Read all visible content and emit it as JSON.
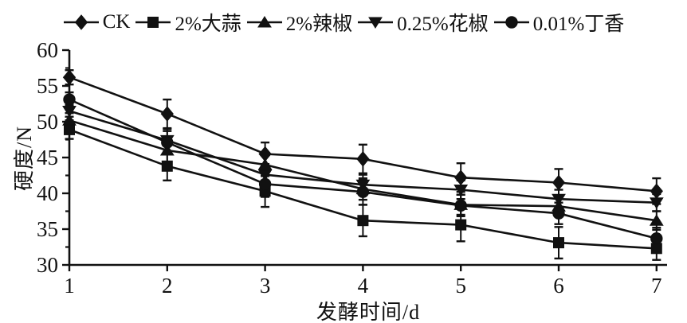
{
  "figure": {
    "background": "#ffffff",
    "ink_color": "#111111",
    "xlabel": "发酵时间/d",
    "ylabel": "硬度/N"
  },
  "chart_data": {
    "type": "line",
    "title": "",
    "xlabel": "发酵时间/d",
    "ylabel": "硬度/N",
    "x": [
      1,
      2,
      3,
      4,
      5,
      6,
      7
    ],
    "xlim": [
      1,
      7
    ],
    "ylim": [
      30,
      60
    ],
    "x_ticks": [
      1,
      2,
      3,
      4,
      5,
      6,
      7
    ],
    "y_major_ticks": [
      30,
      35,
      40,
      45,
      50,
      55,
      60
    ],
    "y_minor_ticks": [
      32.5,
      37.5,
      42.5,
      47.5,
      52.5,
      57.5
    ],
    "grid": false,
    "legend_position": "top",
    "error_bars": true,
    "series": [
      {
        "name": "CK",
        "marker": "diamond",
        "values": [
          56.2,
          51.1,
          45.5,
          44.8,
          42.2,
          41.5,
          40.3
        ],
        "errors": [
          1.0,
          2.0,
          1.6,
          2.0,
          2.0,
          1.9,
          1.8
        ]
      },
      {
        "name": "2%大蒜",
        "marker": "square",
        "values": [
          48.9,
          43.8,
          40.3,
          36.2,
          35.6,
          33.1,
          32.3
        ],
        "errors": [
          1.3,
          2.0,
          2.2,
          2.2,
          2.3,
          2.2,
          1.6
        ]
      },
      {
        "name": "2%辣椒",
        "marker": "triangle-up",
        "values": [
          50.2,
          46.0,
          44.0,
          40.6,
          38.4,
          38.2,
          36.2
        ],
        "errors": [
          1.0,
          1.8,
          1.6,
          1.5,
          1.4,
          1.4,
          1.3
        ]
      },
      {
        "name": "0.25%花椒",
        "marker": "triangle-down",
        "values": [
          51.5,
          47.4,
          42.6,
          41.2,
          40.5,
          39.2,
          38.7
        ],
        "errors": [
          0.8,
          1.6,
          1.5,
          1.4,
          1.3,
          1.3,
          1.2
        ]
      },
      {
        "name": "0.01%丁香",
        "marker": "circle",
        "values": [
          53.1,
          47.1,
          41.3,
          40.2,
          38.3,
          37.2,
          33.7
        ],
        "errors": [
          1.0,
          1.6,
          1.8,
          1.8,
          1.5,
          1.5,
          1.5
        ]
      }
    ]
  }
}
